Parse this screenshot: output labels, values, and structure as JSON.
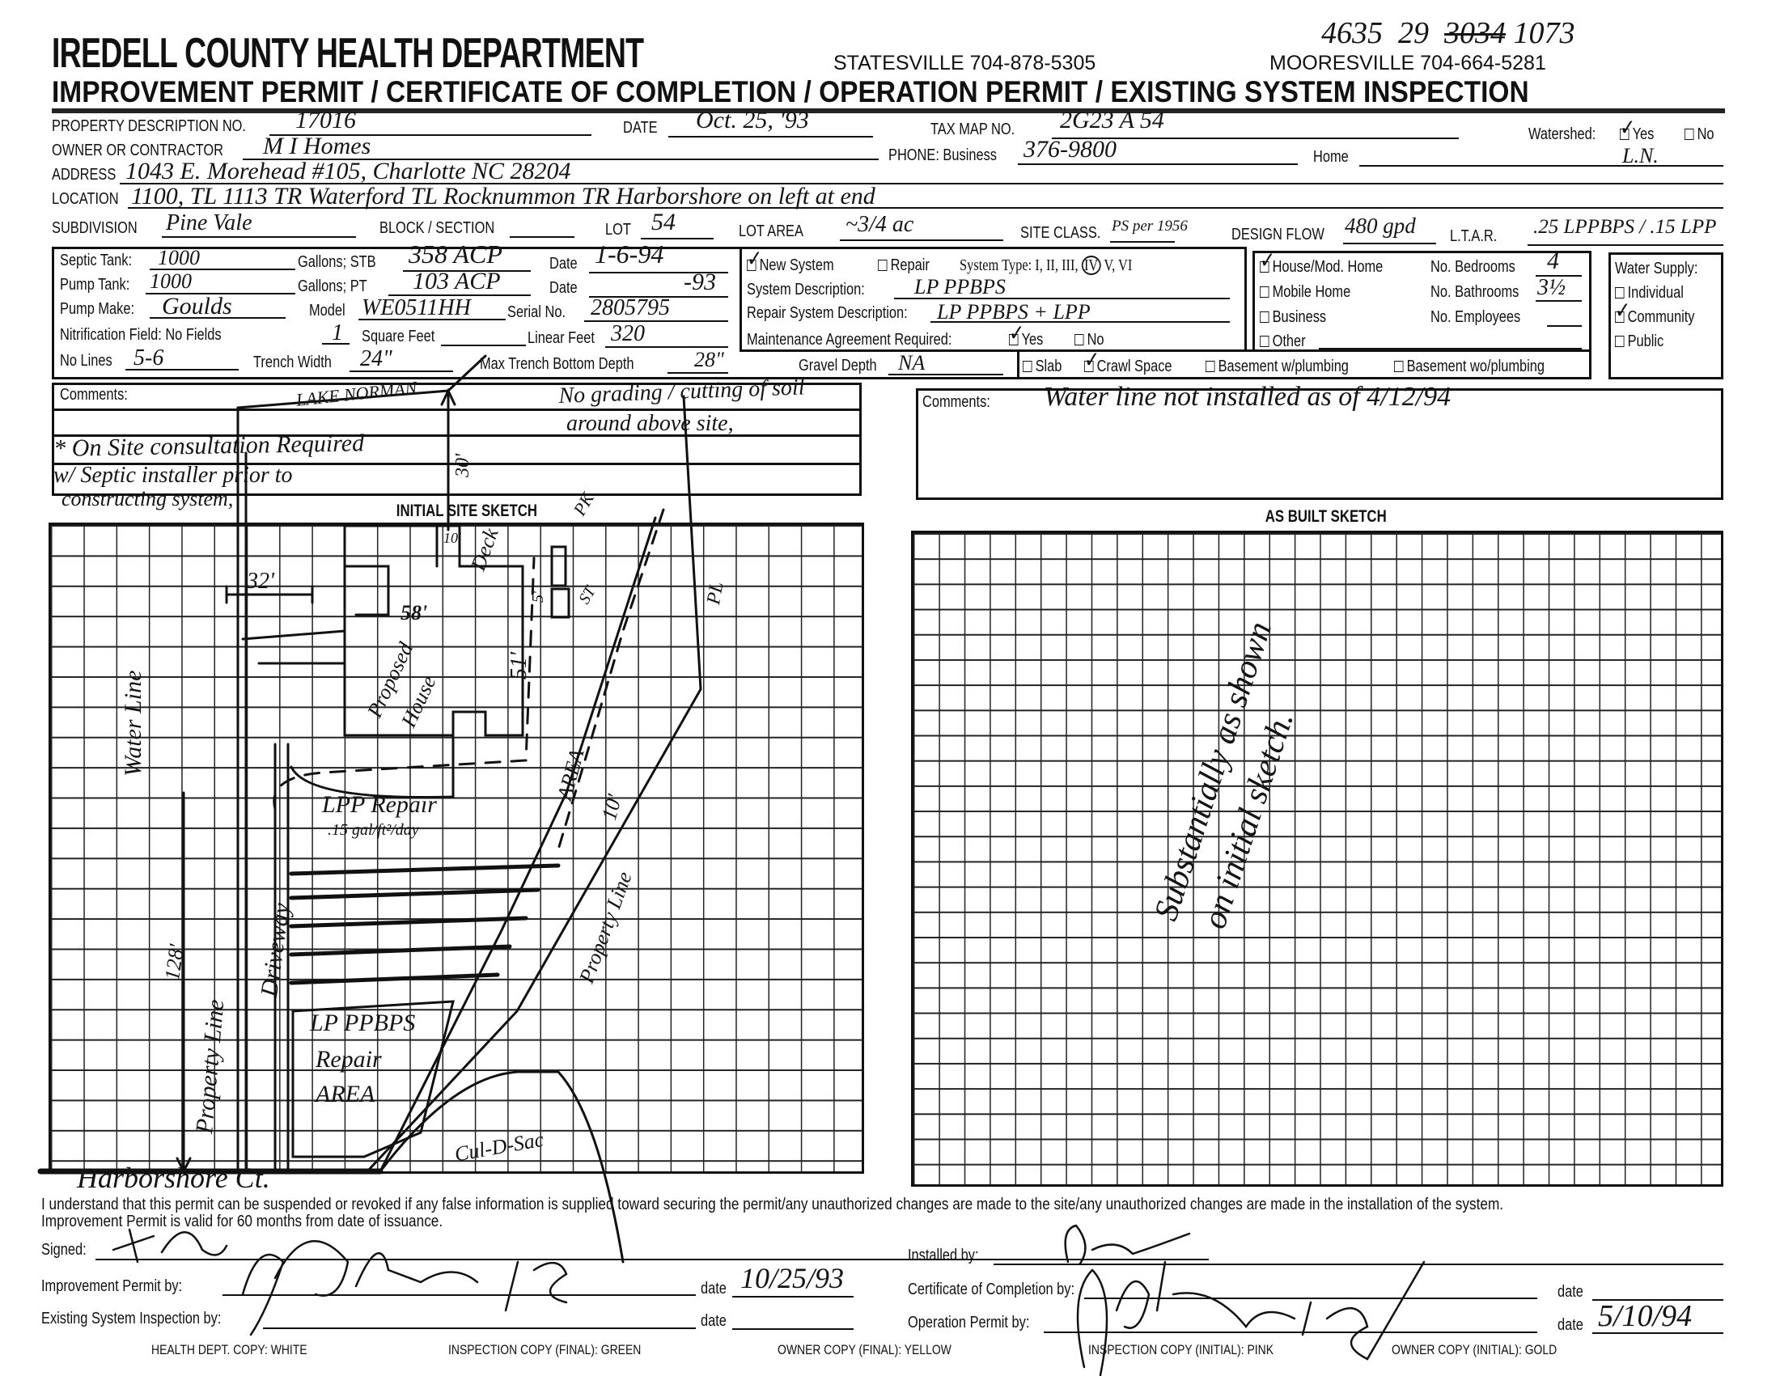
{
  "header": {
    "title": "IREDELL COUNTY HEALTH DEPARTMENT",
    "subtitle": "IMPROVEMENT PERMIT / CERTIFICATE OF COMPLETION / OPERATION PERMIT / EXISTING SYSTEM INSPECTION",
    "statesville_phone": "STATESVILLE 704-878-5305",
    "mooresville_phone": "MOORESVILLE 704-664-5281",
    "handwritten_ref": [
      "4635",
      "29",
      "3034",
      "1073"
    ]
  },
  "property": {
    "property_no_label": "PROPERTY DESCRIPTION NO.",
    "property_no": "17016",
    "date_label": "DATE",
    "date": "Oct. 25, '93",
    "tax_map_label": "TAX MAP NO.",
    "tax_map": "2G23 A 54",
    "watershed_label": "Watershed:",
    "watershed_yes": "Yes",
    "watershed_no": "No",
    "watershed_checked": "Yes",
    "watershed_note": "L.N.",
    "owner_label": "OWNER OR CONTRACTOR",
    "owner": "M I Homes",
    "phone_business_label": "PHONE: Business",
    "phone_business": "376-9800",
    "phone_home_label": "Home",
    "address_label": "ADDRESS",
    "address": "1043 E. Morehead #105, Charlotte NC 28204",
    "location_label": "LOCATION",
    "location": "1100, TL 1113 TR Waterford TL Rocknummon TR Harborshore on left at end",
    "subdivision_label": "SUBDIVISION",
    "subdivision": "Pine Vale",
    "block_label": "BLOCK / SECTION",
    "lot_label": "LOT",
    "lot": "54",
    "lot_area_label": "LOT AREA",
    "lot_area": "~3/4 ac",
    "site_class_label": "SITE CLASS.",
    "site_class": "PS per 1956",
    "design_flow_label": "DESIGN FLOW",
    "design_flow": "480 gpd",
    "ltar_label": "L.T.A.R.",
    "ltar": ".25 LPPBPS / .15 LPP"
  },
  "tanks": {
    "septic_tank_label": "Septic Tank:",
    "septic_tank": "1000",
    "gallons_stb_label": "Gallons;  STB",
    "stb": "358 ACP",
    "date_label": "Date",
    "septic_date": "1-6-94",
    "pump_tank_label": "Pump Tank:",
    "pump_tank": "1000",
    "gallons_pt_label": "Gallons;  PT",
    "pt": "103 ACP",
    "pump_date": "-93",
    "pump_make_label": "Pump Make:",
    "pump_make": "Goulds",
    "model_label": "Model",
    "model": "WE0511HH",
    "serial_label": "Serial No.",
    "serial": "2805795",
    "nitrification_label": "Nitrification Field: No Fields",
    "no_fields": "1",
    "square_feet_label": "Square Feet",
    "linear_feet_label": "Linear Feet",
    "linear_feet": "320",
    "no_lines_label": "No Lines",
    "no_lines": "5-6",
    "trench_width_label": "Trench Width",
    "trench_width": "24\"",
    "max_depth_label": "Max Trench Bottom Depth",
    "max_depth": "28\"",
    "gravel_depth_label": "Gravel Depth",
    "gravel_depth": "NA"
  },
  "system": {
    "new_system": "New System",
    "repair": "Repair",
    "system_type_label": "System Type: I, II, III,",
    "system_type_selected": "IV",
    "system_type_rest": "V, VI",
    "description_label": "System Description:",
    "description": "LP PPBPS",
    "repair_description_label": "Repair System Description:",
    "repair_description": "LP PPBPS + LPP",
    "maintenance_label": "Maintenance Agreement Required:",
    "maintenance_yes": "Yes",
    "maintenance_no": "No",
    "foundation": [
      "Slab",
      "Crawl Space",
      "Basement w/plumbing",
      "Basement wo/plumbing"
    ],
    "foundation_checked": "Crawl Space"
  },
  "building": {
    "types": [
      "House/Mod. Home",
      "Mobile Home",
      "Business",
      "Other"
    ],
    "type_checked": "House/Mod. Home",
    "bedrooms_label": "No. Bedrooms",
    "bedrooms": "4",
    "bathrooms_label": "No. Bathrooms",
    "bathrooms": "3½",
    "employees_label": "No. Employees"
  },
  "water_supply": {
    "label": "Water Supply:",
    "options": [
      "Individual",
      "Community",
      "Public"
    ],
    "checked": "Community"
  },
  "comments_left": {
    "label": "Comments:",
    "lines": [
      "No grading / cutting of soil",
      "around above site,",
      "* On Site consultation Required",
      "w/ Septic installer prior to",
      "constructing system,"
    ]
  },
  "comments_right": {
    "label": "Comments:",
    "text": "Water line not installed as of 4/12/94"
  },
  "initial_sketch": {
    "title": "INITIAL SITE SKETCH",
    "labels": {
      "lake": "LAKE NORMAN",
      "lake_dist": "30'",
      "dim_32": "32'",
      "dim_10": "10'",
      "deck": "Deck",
      "dim_58": "58'",
      "dim_51": "51'",
      "house1": "Proposed",
      "house2": "House",
      "pk": "PK",
      "st": "ST",
      "dim_5": "5'",
      "pl": "PL",
      "water_line": "Water Line",
      "area": "AREA",
      "dim_10b": "10'",
      "lpp_repair": "LPP Repair",
      "rate": ".15 gal/ft²/day",
      "driveway": "Driveway",
      "dim_128": "128'",
      "property_line_left": "Property Line",
      "property_line_right": "Property Line",
      "repair_area1": "LP PPBPS",
      "repair_area2": "Repair",
      "repair_area3": "AREA",
      "cul_de_sac": "Cul-D-Sac",
      "street": "Harborshore Ct."
    }
  },
  "as_built_sketch": {
    "title": "AS BUILT SKETCH",
    "note1": "Substantially as shown",
    "note2": "on initial sketch."
  },
  "footer": {
    "statement1": "I understand that this permit can be suspended or revoked if any false information is supplied toward securing the permit/any unauthorized changes are made to the site/any unauthorized changes are made in the installation of the system.",
    "statement2": "Improvement Permit is valid for 60 months from date of issuance.",
    "signed_label": "Signed:",
    "improvement_label": "Improvement Permit by:",
    "improvement_date": "10/25/93",
    "existing_label": "Existing System Inspection by:",
    "date_label": "date",
    "installed_label": "Installed by:",
    "certificate_label": "Certificate of Completion by:",
    "operation_label": "Operation Permit by:",
    "operation_date": "5/10/94",
    "copies": [
      "HEALTH DEPT. COPY: WHITE",
      "INSPECTION COPY (FINAL): GREEN",
      "OWNER COPY (FINAL): YELLOW",
      "INSPECTION COPY (INITIAL): PINK",
      "OWNER COPY (INITIAL): GOLD"
    ]
  }
}
